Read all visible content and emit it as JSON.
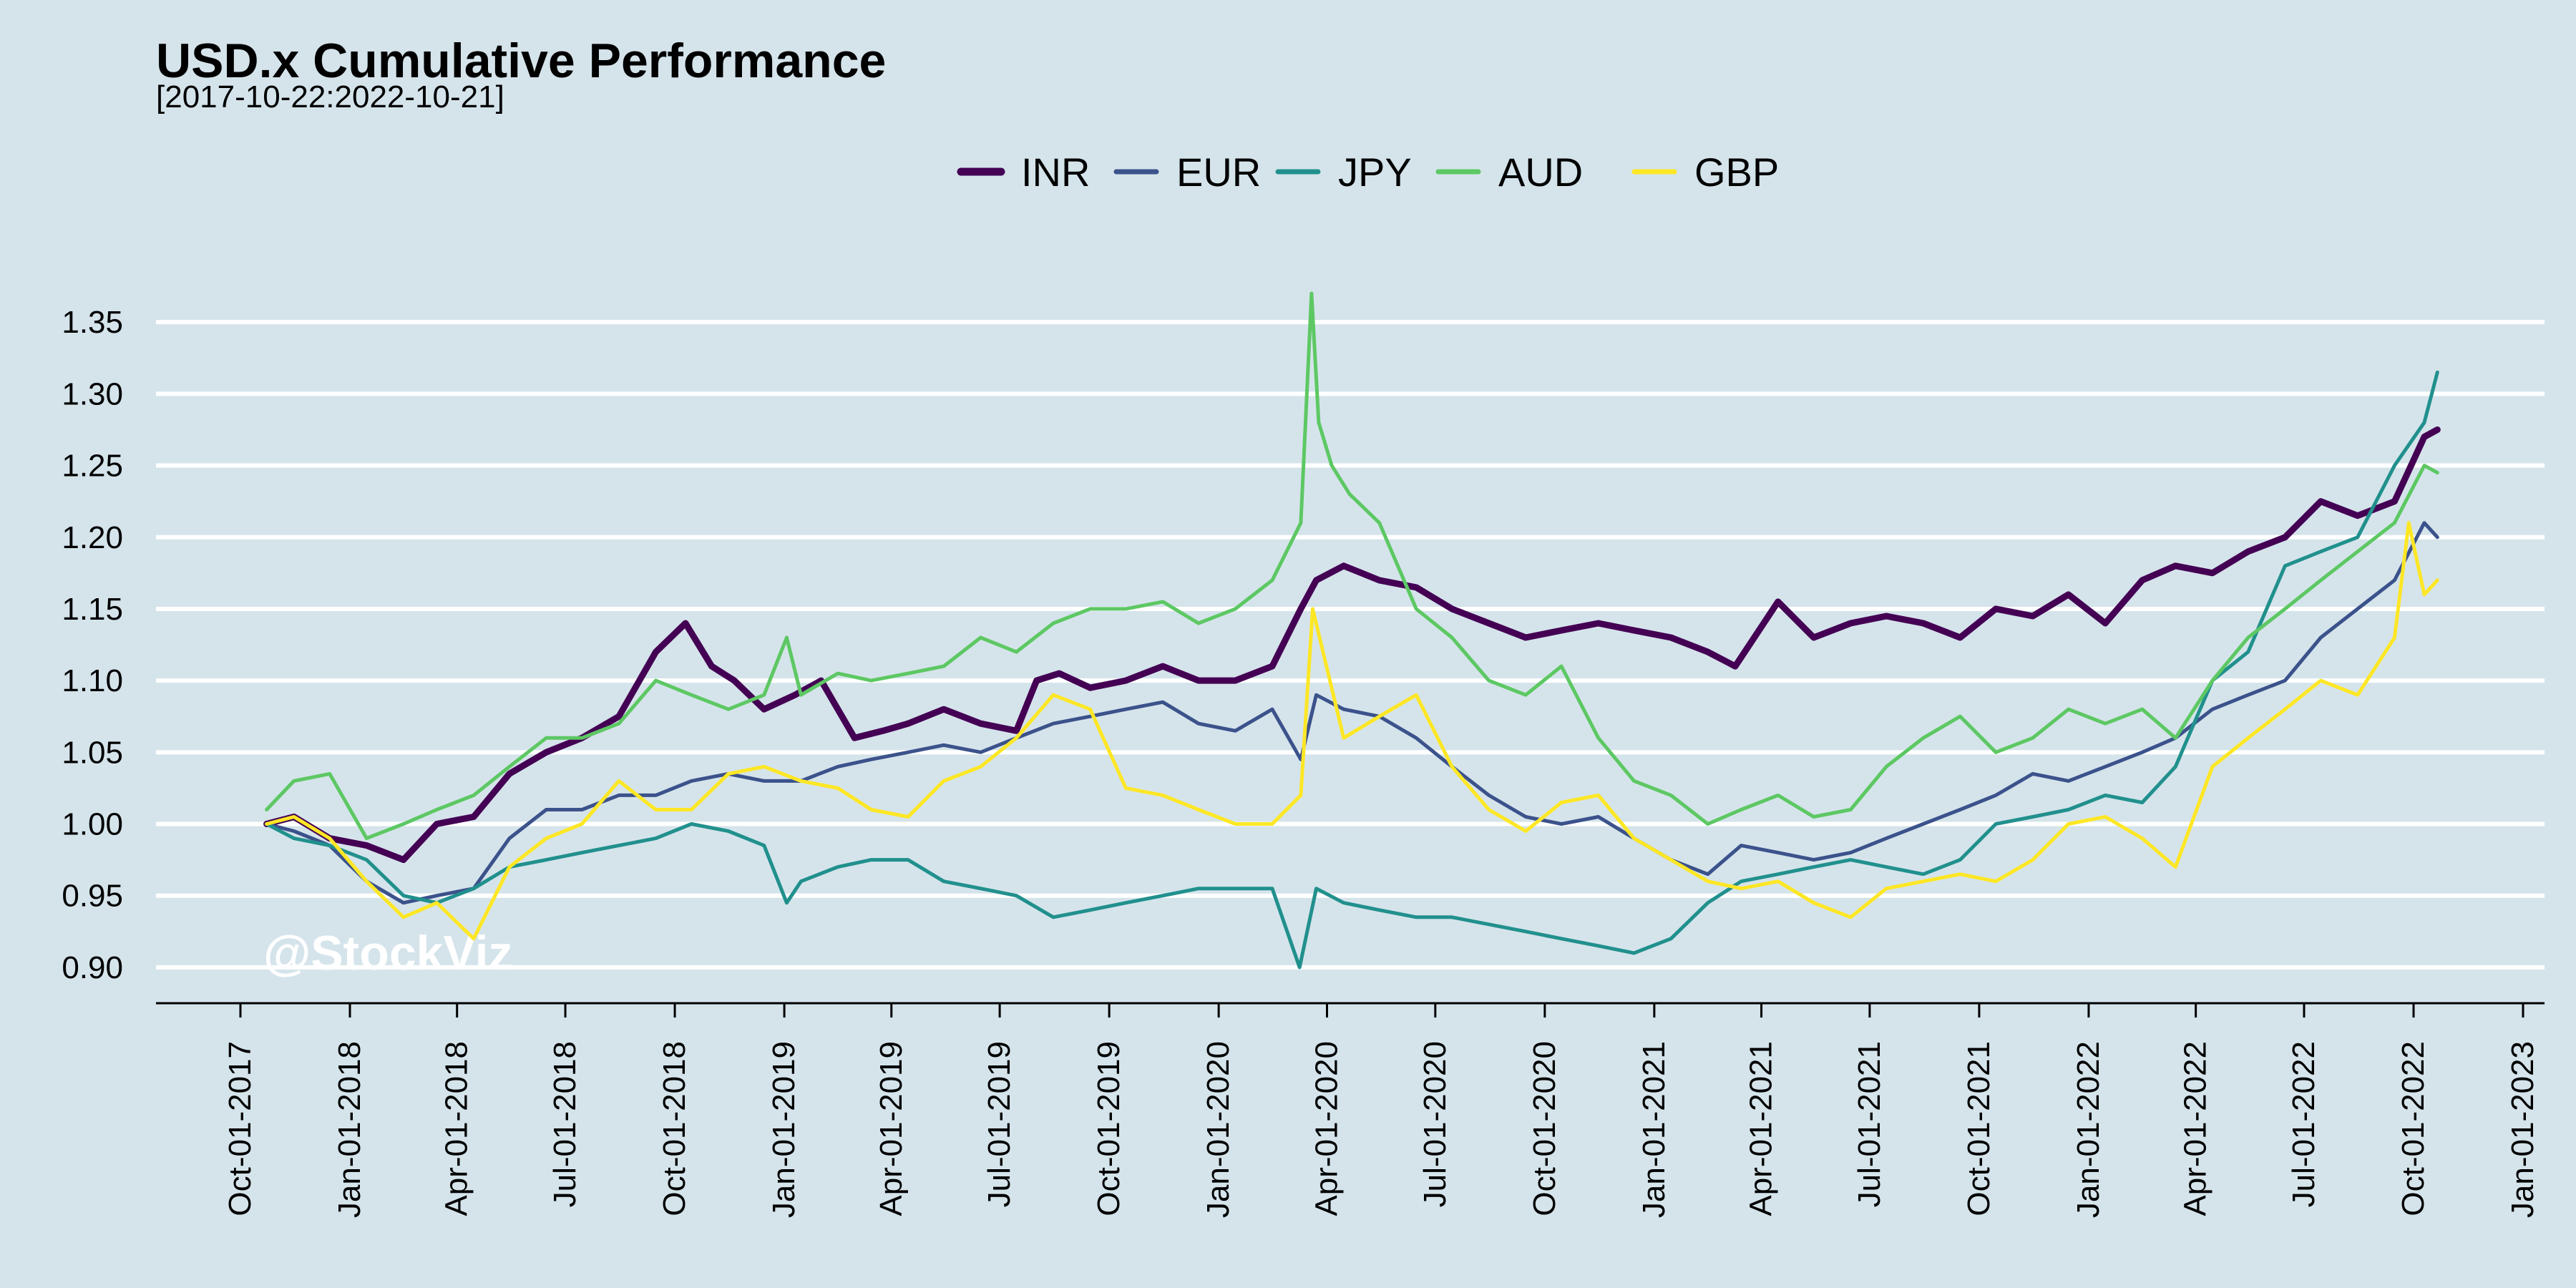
{
  "chart_data": {
    "type": "line",
    "title": "USD.x Cumulative Performance",
    "subtitle": "[2017-10-22:2022-10-21]",
    "xlabel": "",
    "ylabel": "",
    "xlim": [
      "2017-10-01",
      "2023-01-01"
    ],
    "ylim": [
      0.875,
      1.395
    ],
    "yticks": [
      0.9,
      0.95,
      1.0,
      1.05,
      1.1,
      1.15,
      1.2,
      1.25,
      1.3,
      1.35
    ],
    "ytick_labels": [
      "0.90",
      "0.95",
      "1.00",
      "1.05",
      "1.10",
      "1.15",
      "1.20",
      "1.25",
      "1.30",
      "1.35"
    ],
    "xticks": [
      "2017-10-01",
      "2018-01-01",
      "2018-04-01",
      "2018-07-01",
      "2018-10-01",
      "2019-01-01",
      "2019-04-01",
      "2019-07-01",
      "2019-10-01",
      "2020-01-01",
      "2020-04-01",
      "2020-07-01",
      "2020-10-01",
      "2021-01-01",
      "2021-04-01",
      "2021-07-01",
      "2021-10-01",
      "2022-01-01",
      "2022-04-01",
      "2022-07-01",
      "2022-10-01",
      "2023-01-01"
    ],
    "xtick_labels": [
      "Oct-01-2017",
      "Jan-01-2018",
      "Apr-01-2018",
      "Jul-01-2018",
      "Oct-01-2018",
      "Jan-01-2019",
      "Apr-01-2019",
      "Jul-01-2019",
      "Oct-01-2019",
      "Jan-01-2020",
      "Apr-01-2020",
      "Jul-01-2020",
      "Oct-01-2020",
      "Jan-01-2021",
      "Apr-01-2021",
      "Jul-01-2021",
      "Oct-01-2021",
      "Jan-01-2022",
      "Apr-01-2022",
      "Jul-01-2022",
      "Oct-01-2022",
      "Jan-01-2023"
    ],
    "grid": "horizontal",
    "legend": "top",
    "watermark": "@StockViz",
    "series": [
      {
        "name": "INR",
        "color": "#440154",
        "x": [
          "2017-10-23",
          "2017-11-15",
          "2017-12-15",
          "2018-01-15",
          "2018-02-15",
          "2018-03-15",
          "2018-04-15",
          "2018-05-15",
          "2018-06-15",
          "2018-07-15",
          "2018-08-15",
          "2018-09-15",
          "2018-10-10",
          "2018-11-01",
          "2018-11-20",
          "2018-12-15",
          "2019-01-10",
          "2019-02-01",
          "2019-03-01",
          "2019-03-25",
          "2019-04-15",
          "2019-05-15",
          "2019-06-15",
          "2019-07-15",
          "2019-08-01",
          "2019-08-20",
          "2019-09-15",
          "2019-10-15",
          "2019-11-15",
          "2019-12-15",
          "2020-01-15",
          "2020-02-15",
          "2020-03-10",
          "2020-03-23",
          "2020-04-15",
          "2020-05-15",
          "2020-06-15",
          "2020-07-15",
          "2020-08-15",
          "2020-09-15",
          "2020-10-15",
          "2020-11-15",
          "2020-12-15",
          "2021-01-15",
          "2021-02-15",
          "2021-03-10",
          "2021-04-15",
          "2021-05-15",
          "2021-06-15",
          "2021-07-15",
          "2021-08-15",
          "2021-09-15",
          "2021-10-15",
          "2021-11-15",
          "2021-12-15",
          "2022-01-15",
          "2022-02-15",
          "2022-03-15",
          "2022-04-15",
          "2022-05-15",
          "2022-06-15",
          "2022-07-15",
          "2022-08-15",
          "2022-09-15",
          "2022-10-10",
          "2022-10-21"
        ],
        "y": [
          1.0,
          1.005,
          0.99,
          0.985,
          0.975,
          1.0,
          1.005,
          1.035,
          1.05,
          1.06,
          1.075,
          1.12,
          1.14,
          1.11,
          1.1,
          1.08,
          1.09,
          1.1,
          1.06,
          1.065,
          1.07,
          1.08,
          1.07,
          1.065,
          1.1,
          1.105,
          1.095,
          1.1,
          1.11,
          1.1,
          1.1,
          1.11,
          1.15,
          1.17,
          1.18,
          1.17,
          1.165,
          1.15,
          1.14,
          1.13,
          1.135,
          1.14,
          1.135,
          1.13,
          1.12,
          1.11,
          1.155,
          1.13,
          1.14,
          1.145,
          1.14,
          1.13,
          1.15,
          1.145,
          1.16,
          1.14,
          1.17,
          1.18,
          1.175,
          1.19,
          1.2,
          1.225,
          1.215,
          1.225,
          1.27,
          1.275
        ]
      },
      {
        "name": "EUR",
        "color": "#3b528b",
        "x": [
          "2017-10-23",
          "2017-11-15",
          "2017-12-15",
          "2018-01-15",
          "2018-02-15",
          "2018-03-15",
          "2018-04-15",
          "2018-05-15",
          "2018-06-15",
          "2018-07-15",
          "2018-08-15",
          "2018-09-15",
          "2018-10-15",
          "2018-11-15",
          "2018-12-15",
          "2019-01-15",
          "2019-02-15",
          "2019-03-15",
          "2019-04-15",
          "2019-05-15",
          "2019-06-15",
          "2019-07-15",
          "2019-08-15",
          "2019-09-15",
          "2019-10-15",
          "2019-11-15",
          "2019-12-15",
          "2020-01-15",
          "2020-02-15",
          "2020-03-10",
          "2020-03-23",
          "2020-04-15",
          "2020-05-15",
          "2020-06-15",
          "2020-07-15",
          "2020-08-15",
          "2020-09-15",
          "2020-10-15",
          "2020-11-15",
          "2020-12-15",
          "2021-01-15",
          "2021-02-15",
          "2021-03-15",
          "2021-04-15",
          "2021-05-15",
          "2021-06-15",
          "2021-07-15",
          "2021-08-15",
          "2021-09-15",
          "2021-10-15",
          "2021-11-15",
          "2021-12-15",
          "2022-01-15",
          "2022-02-15",
          "2022-03-15",
          "2022-04-15",
          "2022-05-15",
          "2022-06-15",
          "2022-07-15",
          "2022-08-15",
          "2022-09-15",
          "2022-10-10",
          "2022-10-21"
        ],
        "y": [
          1.0,
          0.995,
          0.985,
          0.96,
          0.945,
          0.95,
          0.955,
          0.99,
          1.01,
          1.01,
          1.02,
          1.02,
          1.03,
          1.035,
          1.03,
          1.03,
          1.04,
          1.045,
          1.05,
          1.055,
          1.05,
          1.06,
          1.07,
          1.075,
          1.08,
          1.085,
          1.07,
          1.065,
          1.08,
          1.045,
          1.09,
          1.08,
          1.075,
          1.06,
          1.04,
          1.02,
          1.005,
          1.0,
          1.005,
          0.99,
          0.975,
          0.965,
          0.985,
          0.98,
          0.975,
          0.98,
          0.99,
          1.0,
          1.01,
          1.02,
          1.035,
          1.03,
          1.04,
          1.05,
          1.06,
          1.08,
          1.09,
          1.1,
          1.13,
          1.15,
          1.17,
          1.21,
          1.2
        ]
      },
      {
        "name": "JPY",
        "color": "#21908d",
        "x": [
          "2017-10-23",
          "2017-11-15",
          "2017-12-15",
          "2018-01-15",
          "2018-02-15",
          "2018-03-15",
          "2018-04-15",
          "2018-05-15",
          "2018-06-15",
          "2018-07-15",
          "2018-08-15",
          "2018-09-15",
          "2018-10-15",
          "2018-11-15",
          "2018-12-15",
          "2019-01-03",
          "2019-01-15",
          "2019-02-15",
          "2019-03-15",
          "2019-04-15",
          "2019-05-15",
          "2019-06-15",
          "2019-07-15",
          "2019-08-15",
          "2019-09-15",
          "2019-10-15",
          "2019-11-15",
          "2019-12-15",
          "2020-01-15",
          "2020-02-15",
          "2020-03-09",
          "2020-03-23",
          "2020-04-15",
          "2020-05-15",
          "2020-06-15",
          "2020-07-15",
          "2020-08-15",
          "2020-09-15",
          "2020-10-15",
          "2020-11-15",
          "2020-12-15",
          "2021-01-15",
          "2021-02-15",
          "2021-03-15",
          "2021-04-15",
          "2021-05-15",
          "2021-06-15",
          "2021-07-15",
          "2021-08-15",
          "2021-09-15",
          "2021-10-15",
          "2021-11-15",
          "2021-12-15",
          "2022-01-15",
          "2022-02-15",
          "2022-03-15",
          "2022-04-15",
          "2022-05-15",
          "2022-06-15",
          "2022-07-15",
          "2022-08-15",
          "2022-09-15",
          "2022-10-10",
          "2022-10-21"
        ],
        "y": [
          1.0,
          0.99,
          0.985,
          0.975,
          0.95,
          0.945,
          0.955,
          0.97,
          0.975,
          0.98,
          0.985,
          0.99,
          1.0,
          0.995,
          0.985,
          0.945,
          0.96,
          0.97,
          0.975,
          0.975,
          0.96,
          0.955,
          0.95,
          0.935,
          0.94,
          0.945,
          0.95,
          0.955,
          0.955,
          0.955,
          0.9,
          0.955,
          0.945,
          0.94,
          0.935,
          0.935,
          0.93,
          0.925,
          0.92,
          0.915,
          0.91,
          0.92,
          0.945,
          0.96,
          0.965,
          0.97,
          0.975,
          0.97,
          0.965,
          0.975,
          1.0,
          1.005,
          1.01,
          1.02,
          1.015,
          1.04,
          1.1,
          1.12,
          1.18,
          1.19,
          1.2,
          1.25,
          1.28,
          1.315
        ]
      },
      {
        "name": "AUD",
        "color": "#5dc863",
        "x": [
          "2017-10-23",
          "2017-11-15",
          "2017-12-15",
          "2018-01-15",
          "2018-02-15",
          "2018-03-15",
          "2018-04-15",
          "2018-05-15",
          "2018-06-15",
          "2018-07-15",
          "2018-08-15",
          "2018-09-15",
          "2018-10-15",
          "2018-11-15",
          "2018-12-15",
          "2019-01-03",
          "2019-01-15",
          "2019-02-15",
          "2019-03-15",
          "2019-04-15",
          "2019-05-15",
          "2019-06-15",
          "2019-07-15",
          "2019-08-15",
          "2019-09-15",
          "2019-10-15",
          "2019-11-15",
          "2019-12-15",
          "2020-01-15",
          "2020-02-15",
          "2020-03-10",
          "2020-03-19",
          "2020-03-25",
          "2020-04-05",
          "2020-04-20",
          "2020-05-15",
          "2020-06-15",
          "2020-07-15",
          "2020-08-15",
          "2020-09-15",
          "2020-10-15",
          "2020-11-15",
          "2020-12-15",
          "2021-01-15",
          "2021-02-15",
          "2021-03-15",
          "2021-04-15",
          "2021-05-15",
          "2021-06-15",
          "2021-07-15",
          "2021-08-15",
          "2021-09-15",
          "2021-10-15",
          "2021-11-15",
          "2021-12-15",
          "2022-01-15",
          "2022-02-15",
          "2022-03-15",
          "2022-04-15",
          "2022-05-15",
          "2022-06-15",
          "2022-07-15",
          "2022-08-15",
          "2022-09-15",
          "2022-10-10",
          "2022-10-21"
        ],
        "y": [
          1.01,
          1.03,
          1.035,
          0.99,
          1.0,
          1.01,
          1.02,
          1.04,
          1.06,
          1.06,
          1.07,
          1.1,
          1.09,
          1.08,
          1.09,
          1.13,
          1.09,
          1.105,
          1.1,
          1.105,
          1.11,
          1.13,
          1.12,
          1.14,
          1.15,
          1.15,
          1.155,
          1.14,
          1.15,
          1.17,
          1.21,
          1.37,
          1.28,
          1.25,
          1.23,
          1.21,
          1.15,
          1.13,
          1.1,
          1.09,
          1.11,
          1.06,
          1.03,
          1.02,
          1.0,
          1.01,
          1.02,
          1.005,
          1.01,
          1.04,
          1.06,
          1.075,
          1.05,
          1.06,
          1.08,
          1.07,
          1.08,
          1.06,
          1.1,
          1.13,
          1.15,
          1.17,
          1.19,
          1.21,
          1.25,
          1.245
        ]
      },
      {
        "name": "GBP",
        "color": "#fde725",
        "x": [
          "2017-10-23",
          "2017-11-15",
          "2017-12-15",
          "2018-01-15",
          "2018-02-15",
          "2018-03-15",
          "2018-04-15",
          "2018-05-15",
          "2018-06-15",
          "2018-07-15",
          "2018-08-15",
          "2018-09-15",
          "2018-10-15",
          "2018-11-15",
          "2018-12-15",
          "2019-01-15",
          "2019-02-15",
          "2019-03-15",
          "2019-04-15",
          "2019-05-15",
          "2019-06-15",
          "2019-07-15",
          "2019-08-15",
          "2019-09-15",
          "2019-10-15",
          "2019-11-15",
          "2019-12-15",
          "2020-01-15",
          "2020-02-15",
          "2020-03-10",
          "2020-03-20",
          "2020-04-15",
          "2020-05-15",
          "2020-06-15",
          "2020-07-15",
          "2020-08-15",
          "2020-09-15",
          "2020-10-15",
          "2020-11-15",
          "2020-12-15",
          "2021-01-15",
          "2021-02-15",
          "2021-03-15",
          "2021-04-15",
          "2021-05-15",
          "2021-06-15",
          "2021-07-15",
          "2021-08-15",
          "2021-09-15",
          "2021-10-15",
          "2021-11-15",
          "2021-12-15",
          "2022-01-15",
          "2022-02-15",
          "2022-03-15",
          "2022-04-15",
          "2022-05-15",
          "2022-06-15",
          "2022-07-15",
          "2022-08-15",
          "2022-09-15",
          "2022-09-27",
          "2022-10-10",
          "2022-10-21"
        ],
        "y": [
          1.0,
          1.005,
          0.99,
          0.96,
          0.935,
          0.945,
          0.92,
          0.97,
          0.99,
          1.0,
          1.03,
          1.01,
          1.01,
          1.035,
          1.04,
          1.03,
          1.025,
          1.01,
          1.005,
          1.03,
          1.04,
          1.06,
          1.09,
          1.08,
          1.025,
          1.02,
          1.01,
          1.0,
          1.0,
          1.02,
          1.15,
          1.06,
          1.075,
          1.09,
          1.04,
          1.01,
          0.995,
          1.015,
          1.02,
          0.99,
          0.975,
          0.96,
          0.955,
          0.96,
          0.945,
          0.935,
          0.955,
          0.96,
          0.965,
          0.96,
          0.975,
          1.0,
          1.005,
          0.99,
          0.97,
          1.04,
          1.06,
          1.08,
          1.1,
          1.09,
          1.13,
          1.21,
          1.16,
          1.17
        ]
      }
    ]
  }
}
